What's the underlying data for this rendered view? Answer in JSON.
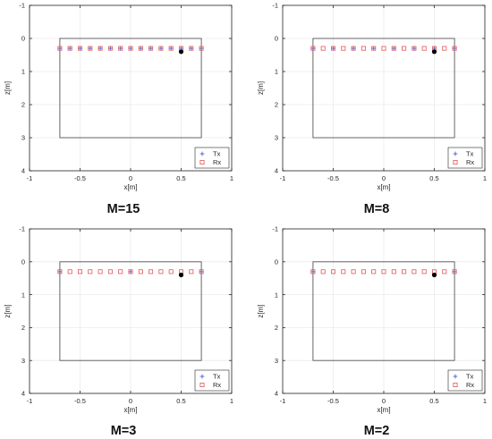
{
  "colors": {
    "tx": "#4a5fd6",
    "rx": "#e05555",
    "target": "#000000",
    "region": "#555555",
    "axes_frame": "#262626",
    "grid": "#ebebeb"
  },
  "icons": {
    "tx_marker": "plus-marker",
    "rx_marker": "square-marker",
    "target_marker": "filled-circle-marker"
  },
  "chart_data": [
    {
      "type": "scatter",
      "caption": "M=15",
      "xlabel": "x[m]",
      "ylabel": "z[m]",
      "xlim": [
        -1,
        1
      ],
      "ylim": [
        -1,
        4
      ],
      "y_axis_reversed": true,
      "grid": true,
      "xticks": [
        "-1",
        "-0.5",
        "0",
        "0.5",
        "1"
      ],
      "yticks": [
        "-1",
        "0",
        "1",
        "2",
        "3",
        "4"
      ],
      "legend": {
        "position": "bottom-right",
        "entries": [
          "Tx",
          "Rx"
        ]
      },
      "series": [
        {
          "name": "Tx",
          "marker": "+",
          "x": [
            -0.7,
            -0.6,
            -0.5,
            -0.4,
            -0.3,
            -0.2,
            -0.1,
            0.0,
            0.1,
            0.2,
            0.3,
            0.4,
            0.5,
            0.6,
            0.7
          ],
          "y": [
            0.3,
            0.3,
            0.3,
            0.3,
            0.3,
            0.3,
            0.3,
            0.3,
            0.3,
            0.3,
            0.3,
            0.3,
            0.3,
            0.3,
            0.3
          ]
        },
        {
          "name": "Rx",
          "marker": "square",
          "x": [
            -0.7,
            -0.6,
            -0.5,
            -0.4,
            -0.3,
            -0.2,
            -0.1,
            0.0,
            0.1,
            0.2,
            0.3,
            0.4,
            0.5,
            0.6,
            0.7
          ],
          "y": [
            0.3,
            0.3,
            0.3,
            0.3,
            0.3,
            0.3,
            0.3,
            0.3,
            0.3,
            0.3,
            0.3,
            0.3,
            0.3,
            0.3,
            0.3
          ]
        }
      ],
      "target": {
        "x": 0.5,
        "y": 0.4
      },
      "region": {
        "x": [
          -0.7,
          0.7
        ],
        "y": [
          0,
          3
        ]
      }
    },
    {
      "type": "scatter",
      "caption": "M=8",
      "xlabel": "x[m]",
      "ylabel": "z[m]",
      "xlim": [
        -1,
        1
      ],
      "ylim": [
        -1,
        4
      ],
      "y_axis_reversed": true,
      "grid": true,
      "xticks": [
        "-1",
        "-0.5",
        "0",
        "0.5",
        "1"
      ],
      "yticks": [
        "-1",
        "0",
        "1",
        "2",
        "3",
        "4"
      ],
      "legend": {
        "position": "bottom-right",
        "entries": [
          "Tx",
          "Rx"
        ]
      },
      "series": [
        {
          "name": "Tx",
          "marker": "+",
          "x": [
            -0.7,
            -0.5,
            -0.3,
            -0.1,
            0.1,
            0.3,
            0.5,
            0.7
          ],
          "y": [
            0.3,
            0.3,
            0.3,
            0.3,
            0.3,
            0.3,
            0.3,
            0.3
          ]
        },
        {
          "name": "Rx",
          "marker": "square",
          "x": [
            -0.7,
            -0.6,
            -0.5,
            -0.4,
            -0.3,
            -0.2,
            -0.1,
            0.0,
            0.1,
            0.2,
            0.3,
            0.4,
            0.5,
            0.6,
            0.7
          ],
          "y": [
            0.3,
            0.3,
            0.3,
            0.3,
            0.3,
            0.3,
            0.3,
            0.3,
            0.3,
            0.3,
            0.3,
            0.3,
            0.3,
            0.3,
            0.3
          ]
        }
      ],
      "target": {
        "x": 0.5,
        "y": 0.4
      },
      "region": {
        "x": [
          -0.7,
          0.7
        ],
        "y": [
          0,
          3
        ]
      }
    },
    {
      "type": "scatter",
      "caption": "M=3",
      "xlabel": "x[m]",
      "ylabel": "z[m]",
      "xlim": [
        -1,
        1
      ],
      "ylim": [
        -1,
        4
      ],
      "y_axis_reversed": true,
      "grid": true,
      "xticks": [
        "-1",
        "-0.5",
        "0",
        "0.5",
        "1"
      ],
      "yticks": [
        "-1",
        "0",
        "1",
        "2",
        "3",
        "4"
      ],
      "legend": {
        "position": "bottom-right",
        "entries": [
          "Tx",
          "Rx"
        ]
      },
      "series": [
        {
          "name": "Tx",
          "marker": "+",
          "x": [
            -0.7,
            0.0,
            0.7
          ],
          "y": [
            0.3,
            0.3,
            0.3
          ]
        },
        {
          "name": "Rx",
          "marker": "square",
          "x": [
            -0.7,
            -0.6,
            -0.5,
            -0.4,
            -0.3,
            -0.2,
            -0.1,
            0.0,
            0.1,
            0.2,
            0.3,
            0.4,
            0.5,
            0.6,
            0.7
          ],
          "y": [
            0.3,
            0.3,
            0.3,
            0.3,
            0.3,
            0.3,
            0.3,
            0.3,
            0.3,
            0.3,
            0.3,
            0.3,
            0.3,
            0.3,
            0.3
          ]
        }
      ],
      "target": {
        "x": 0.5,
        "y": 0.4
      },
      "region": {
        "x": [
          -0.7,
          0.7
        ],
        "y": [
          0,
          3
        ]
      }
    },
    {
      "type": "scatter",
      "caption": "M=2",
      "xlabel": "x[m]",
      "ylabel": "z[m]",
      "xlim": [
        -1,
        1
      ],
      "ylim": [
        -1,
        4
      ],
      "y_axis_reversed": true,
      "grid": true,
      "xticks": [
        "-1",
        "-0.5",
        "0",
        "0.5",
        "1"
      ],
      "yticks": [
        "-1",
        "0",
        "1",
        "2",
        "3",
        "4"
      ],
      "legend": {
        "position": "bottom-right",
        "entries": [
          "Tx",
          "Rx"
        ]
      },
      "series": [
        {
          "name": "Tx",
          "marker": "+",
          "x": [
            -0.7,
            0.7
          ],
          "y": [
            0.3,
            0.3
          ]
        },
        {
          "name": "Rx",
          "marker": "square",
          "x": [
            -0.7,
            -0.6,
            -0.5,
            -0.4,
            -0.3,
            -0.2,
            -0.1,
            0.0,
            0.1,
            0.2,
            0.3,
            0.4,
            0.5,
            0.6,
            0.7
          ],
          "y": [
            0.3,
            0.3,
            0.3,
            0.3,
            0.3,
            0.3,
            0.3,
            0.3,
            0.3,
            0.3,
            0.3,
            0.3,
            0.3,
            0.3,
            0.3
          ]
        }
      ],
      "target": {
        "x": 0.5,
        "y": 0.4
      },
      "region": {
        "x": [
          -0.7,
          0.7
        ],
        "y": [
          0,
          3
        ]
      }
    }
  ]
}
